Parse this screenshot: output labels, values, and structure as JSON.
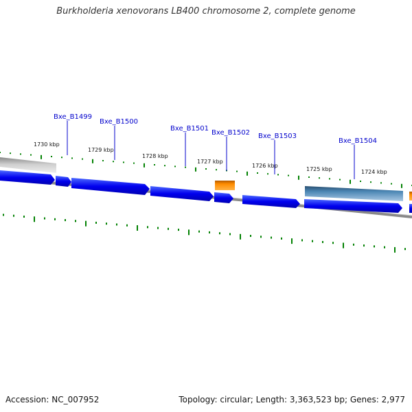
{
  "title": "Burkholderia xenovorans LB400 chromosome 2, complete genome",
  "footer": {
    "accession": "Accession: NC_007952",
    "summary": "Topology: circular; Length: 3,363,523 bp; Genes: 2,977"
  },
  "colors": {
    "cds": "#0000ee",
    "cds_highlight": "#2f62d6",
    "trna": "#ff8800",
    "pseudo_gray": "#b8b8b8",
    "operon_steel": "#4b86b4",
    "backbone": "#808080",
    "tick": "#008000",
    "label": "#0000cc"
  },
  "gene_labels": [
    "Bxe_B1499",
    "Bxe_B1500",
    "Bxe_B1501",
    "Bxe_B1502",
    "Bxe_B1503",
    "Bxe_B1504"
  ],
  "scale_labels": [
    "1730 kbp",
    "1729 kbp",
    "1728 kbp",
    "1727 kbp",
    "1726 kbp",
    "1725 kbp",
    "1724 kbp"
  ]
}
